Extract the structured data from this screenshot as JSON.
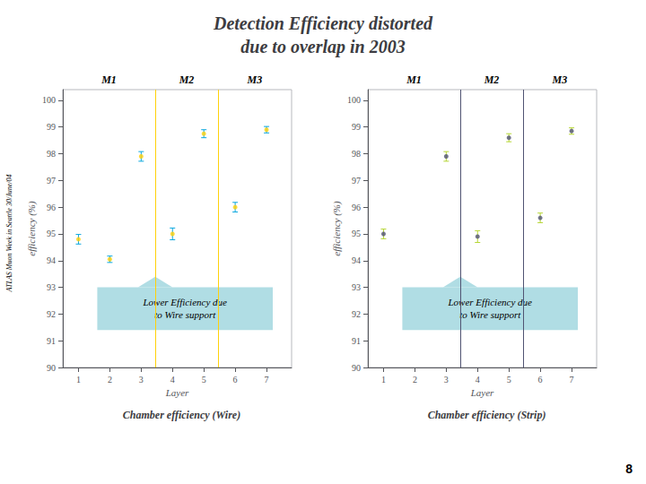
{
  "title": "Detection Efficiency distorted\ndue to overlap in 2003",
  "annotations": [
    "ATLAS Muon Week in Seattle 30/June/04",
    "8"
  ],
  "chart_data": [
    {
      "type": "scatter",
      "title": "Chamber efficiency (Wire)",
      "xlabel": "Layer",
      "ylabel": "efficiency (%)",
      "xlim": [
        0.5,
        7.8
      ],
      "ylim": [
        90,
        100.4
      ],
      "xticks": [
        1,
        2,
        3,
        4,
        5,
        6,
        7
      ],
      "yticks": [
        90,
        91,
        92,
        93,
        94,
        95,
        96,
        97,
        98,
        99,
        100
      ],
      "grid": false,
      "x": [
        1,
        2,
        3,
        4,
        5,
        6,
        7
      ],
      "values": [
        94.8,
        94.05,
        97.9,
        95.0,
        98.75,
        96.0,
        98.9
      ],
      "errors": [
        0.18,
        0.12,
        0.18,
        0.22,
        0.15,
        0.18,
        0.12
      ],
      "vlines": [
        3.45,
        5.45
      ],
      "annotations": [
        {
          "text": "M1",
          "x": 1.975
        },
        {
          "text": "M2",
          "x": 4.45
        },
        {
          "text": "M3",
          "x": 6.625
        },
        {
          "text": "Lower Efficiency due\nto Wire support",
          "x": [
            1.6,
            7.2
          ],
          "y": [
            91.4,
            93.0
          ],
          "arrow": [
            3.45,
            93.4
          ],
          "color": "#b0dde4"
        }
      ]
    },
    {
      "type": "scatter",
      "title": "Chamber efficiency (Strip)",
      "xlabel": "Layer",
      "ylabel": "efficiency (%)",
      "xlim": [
        0.5,
        7.8
      ],
      "ylim": [
        90,
        100.4
      ],
      "xticks": [
        1,
        2,
        3,
        4,
        5,
        6,
        7
      ],
      "yticks": [
        90,
        91,
        92,
        93,
        94,
        95,
        96,
        97,
        98,
        99,
        100
      ],
      "grid": false,
      "x": [
        1,
        3,
        4,
        5,
        6,
        7
      ],
      "values": [
        95.0,
        97.9,
        94.9,
        98.6,
        95.6,
        98.85
      ],
      "errors": [
        0.18,
        0.18,
        0.22,
        0.15,
        0.18,
        0.12
      ],
      "vlines": [
        3.45,
        5.45
      ],
      "annotations": [
        {
          "text": "M1",
          "x": 1.975
        },
        {
          "text": "M2",
          "x": 4.45
        },
        {
          "text": "M3",
          "x": 6.625
        },
        {
          "text": "Lower Efficiency due\nto Wire support",
          "x": [
            1.6,
            7.2
          ],
          "y": [
            91.4,
            93.0
          ],
          "arrow": [
            3.45,
            93.4
          ],
          "color": "#b0dde4"
        }
      ]
    }
  ]
}
